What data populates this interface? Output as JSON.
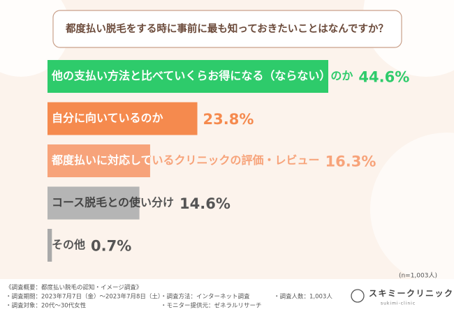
{
  "chart_data": {
    "type": "bar",
    "orientation": "horizontal",
    "title": "都度払い脱毛をする時に事前に最も知っておきたいことはなんですか？",
    "categories": [
      "他の支払い方法と比べていくらお得になる（ならない）のか",
      "自分に向いているのか",
      "都度払いに対応しているクリニックの評価・レビュー",
      "コース脱毛との使い分け",
      "その他"
    ],
    "values": [
      44.6,
      23.8,
      16.3,
      14.6,
      0.7
    ],
    "value_labels": [
      "44.6%",
      "23.8%",
      "16.3%",
      "14.6%",
      "0.7%"
    ],
    "colors": [
      "#2ecb6b",
      "#f58a4e",
      "#f7a37a",
      "#b5b5b5",
      "#a9a9a9"
    ],
    "label_colors": [
      "#ffffff",
      "#ffffff",
      "#ffffff",
      "#444444",
      "#444444"
    ],
    "value_label_colors": [
      "#2ecb6b",
      "#f58a4e",
      "#f7a37a",
      "#555555",
      "#555555"
    ],
    "note": "(n=1,003人)"
  },
  "footer": {
    "survey": [
      "《調査概要：都度払い脱毛の認知・イメージ調査》",
      "・調査期間：2023年7月7日（金）〜2023年7月8日（土）",
      "・調査対象：20代〜30代女性"
    ],
    "method": [
      "・調査方法：インターネット調査",
      "・モニター提供元：ゼネラルリサーチ"
    ],
    "count": "・調査人数：1,003人",
    "logo": "スキミークリニック",
    "logo_sub": "sukimi-clinic"
  }
}
